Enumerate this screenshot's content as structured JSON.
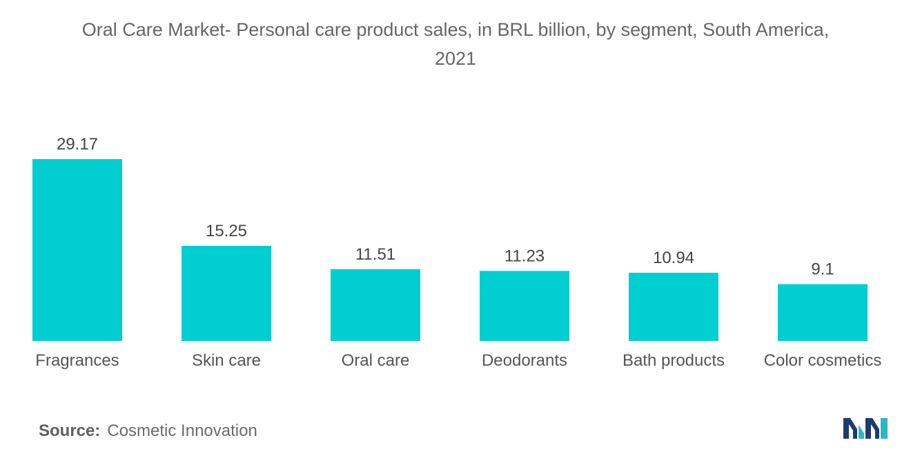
{
  "title_lines": [
    "Oral Care Market- Personal care product sales, in BRL billion, by segment, South America,",
    "2021"
  ],
  "chart_data": {
    "type": "bar",
    "title": "Oral Care Market- Personal care product sales, in BRL billion, by segment, South America, 2021",
    "categories": [
      "Fragrances",
      "Skin care",
      "Oral care",
      "Deodorants",
      "Bath products",
      "Color cosmetics"
    ],
    "values": [
      29.17,
      15.25,
      11.51,
      11.23,
      10.94,
      9.1
    ],
    "value_labels": [
      "29.17",
      "15.25",
      "11.51",
      "11.23",
      "10.94",
      "9.1"
    ],
    "xlabel": "",
    "ylabel": "",
    "ylim": [
      0,
      29.17
    ],
    "grid": false,
    "legend": "none",
    "bar_color": "#00CED1"
  },
  "source": {
    "label": "Source:",
    "text": "Cosmetic Innovation"
  },
  "logo": {
    "icon": "mordor-intelligence-logo-icon",
    "colors": [
      "#1D3C6E",
      "#2DB5C8"
    ]
  }
}
